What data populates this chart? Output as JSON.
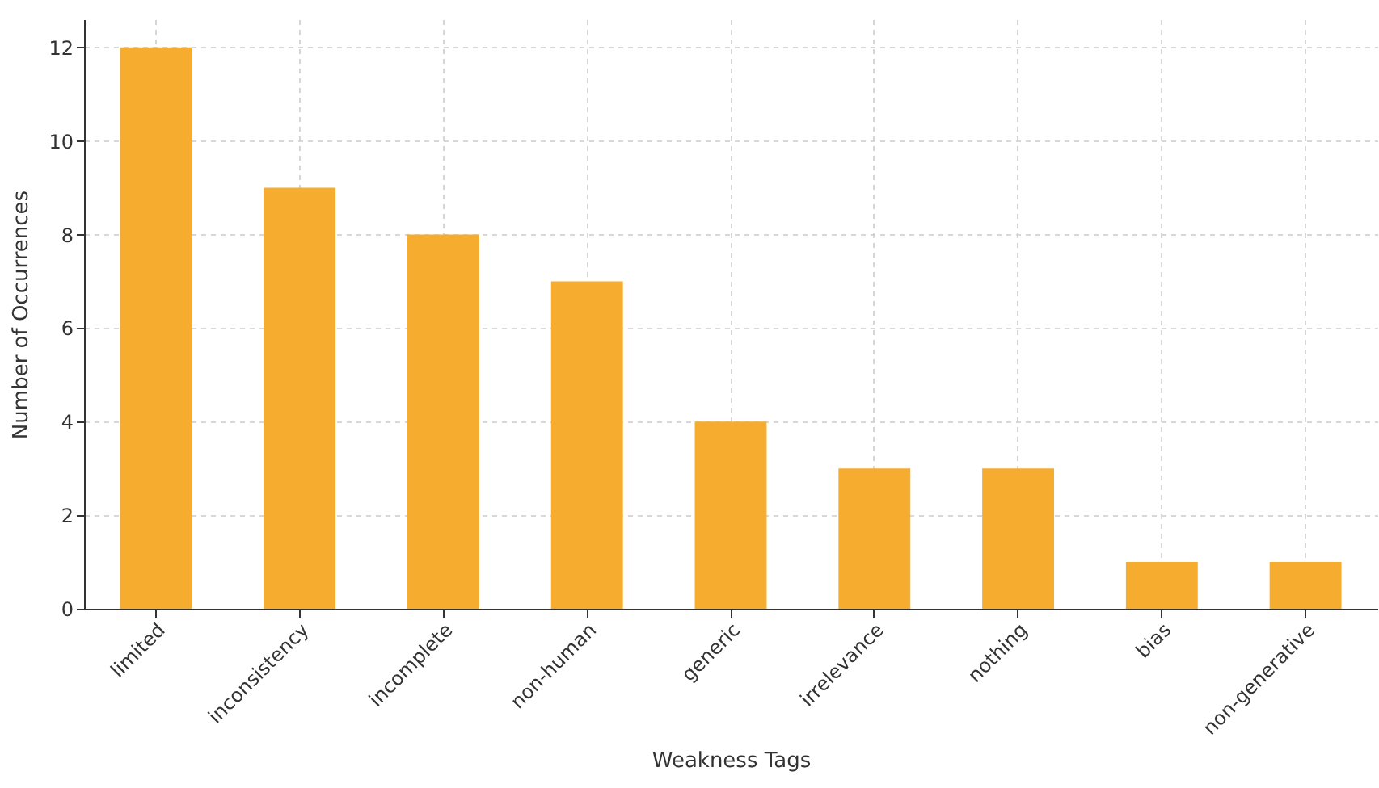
{
  "chart_data": {
    "type": "bar",
    "xlabel": "Weakness Tags",
    "ylabel": "Number of Occurrences",
    "categories": [
      "limited",
      "inconsistency",
      "incomplete",
      "non-human",
      "generic",
      "irrelevance",
      "nothing",
      "bias",
      "non-generative"
    ],
    "values": [
      12,
      9,
      8,
      7,
      4,
      3,
      3,
      1,
      1
    ],
    "color": "#f5ac2f",
    "ylim": [
      0,
      12.6
    ],
    "yticks": [
      0,
      2,
      4,
      6,
      8,
      10,
      12
    ],
    "grid": true
  }
}
